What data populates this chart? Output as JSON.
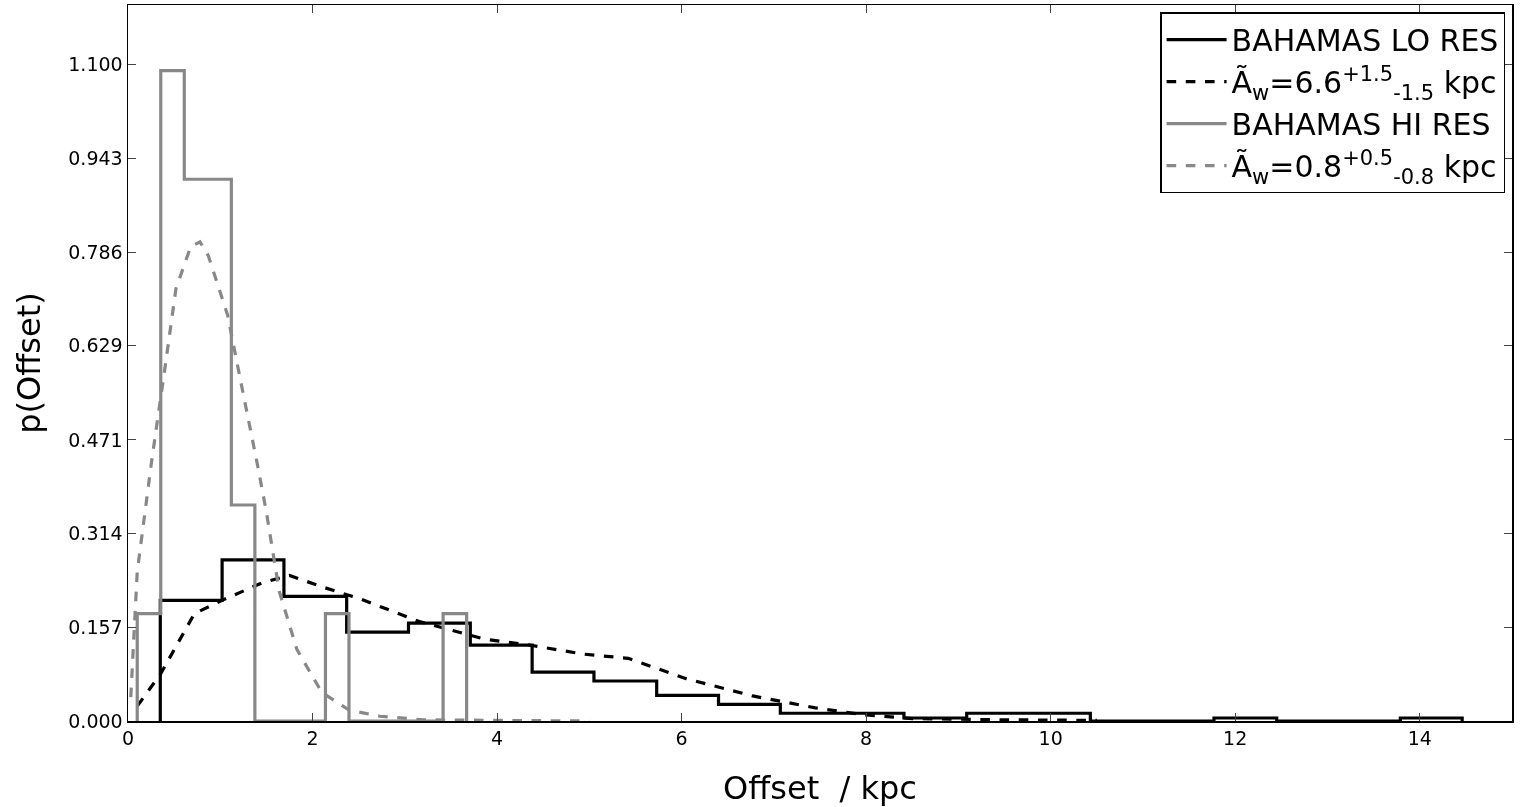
{
  "chart_data": {
    "type": "histogram",
    "xlabel": "Offset  / kpc",
    "ylabel": "p(Offset)",
    "xlim": [
      0,
      15
    ],
    "xticks": [
      0,
      2,
      4,
      6,
      8,
      10,
      12,
      14
    ],
    "ylim": [
      0,
      1.2
    ],
    "yticks": [
      {
        "value": 0,
        "label": "0.000"
      },
      0.157,
      0.314,
      0.471,
      0.629,
      0.786,
      0.943,
      {
        "value": 1.1,
        "label": "1.100"
      }
    ],
    "grid": false,
    "legend": "top right",
    "series": [
      {
        "name": "BAHAMAS LO RES",
        "type": "histogram",
        "color": "#000000",
        "line_style": "solid",
        "bins": [
          0.35,
          1.02,
          1.69,
          2.37,
          3.04,
          3.71,
          4.38,
          5.05,
          5.73,
          6.4,
          7.07,
          7.74,
          8.41,
          9.09,
          9.76,
          10.43,
          11.1,
          11.77,
          12.45,
          13.12,
          13.79,
          14.46
        ],
        "values": [
          0.202,
          0.27,
          0.209,
          0.149,
          0.164,
          0.127,
          0.082,
          0.067,
          0.043,
          0.028,
          0.013,
          0.013,
          0.005,
          0.013,
          0.013,
          0,
          0,
          0.005,
          0,
          0,
          0.005
        ]
      },
      {
        "name": "Ã$_{w}$=6.6$^{+1.5}$$_{-1.5}$ kpc",
        "type": "line",
        "color": "#000000",
        "line_style": "dashed",
        "x": [
          0.1,
          0.35,
          0.72,
          1.03,
          1.46,
          1.75,
          2.1,
          2.53,
          3.15,
          3.87,
          4.36,
          4.94,
          5.42,
          6.05,
          6.77,
          7.45,
          8.0,
          8.5,
          9.5,
          10.5
        ],
        "values": [
          0.025,
          0.078,
          0.18,
          0.203,
          0.232,
          0.244,
          0.225,
          0.204,
          0.167,
          0.137,
          0.127,
          0.112,
          0.105,
          0.071,
          0.042,
          0.022,
          0.01,
          0.004,
          0.002,
          0.001
        ]
      },
      {
        "name": "BAHAMAS HI RES",
        "type": "histogram",
        "color": "#888888",
        "line_style": "solid",
        "bins": [
          0.1,
          0.355,
          0.61,
          0.865,
          1.12,
          1.375,
          1.63,
          1.885,
          2.14,
          2.395,
          2.65,
          2.905,
          3.16,
          3.415,
          3.67
        ],
        "values": [
          0.18,
          1.09,
          0.908,
          0.908,
          0.362,
          0,
          0,
          0,
          0.18,
          0,
          0,
          0,
          0,
          0.18
        ]
      },
      {
        "name": "Ã$_{w}$=0.8$^{+0.5}$$_{-0.8}$ kpc",
        "type": "line",
        "color": "#888888",
        "line_style": "dashed",
        "x": [
          0.03,
          0.1,
          0.26,
          0.39,
          0.52,
          0.68,
          0.78,
          0.87,
          1.08,
          1.2,
          1.41,
          1.5,
          1.64,
          1.83,
          2.1,
          2.4,
          2.73,
          3.2,
          4.0,
          5.0
        ],
        "values": [
          0.04,
          0.25,
          0.44,
          0.58,
          0.725,
          0.795,
          0.803,
          0.78,
          0.68,
          0.586,
          0.424,
          0.35,
          0.217,
          0.12,
          0.048,
          0.018,
          0.008,
          0.002,
          0.001,
          0
        ]
      }
    ]
  }
}
